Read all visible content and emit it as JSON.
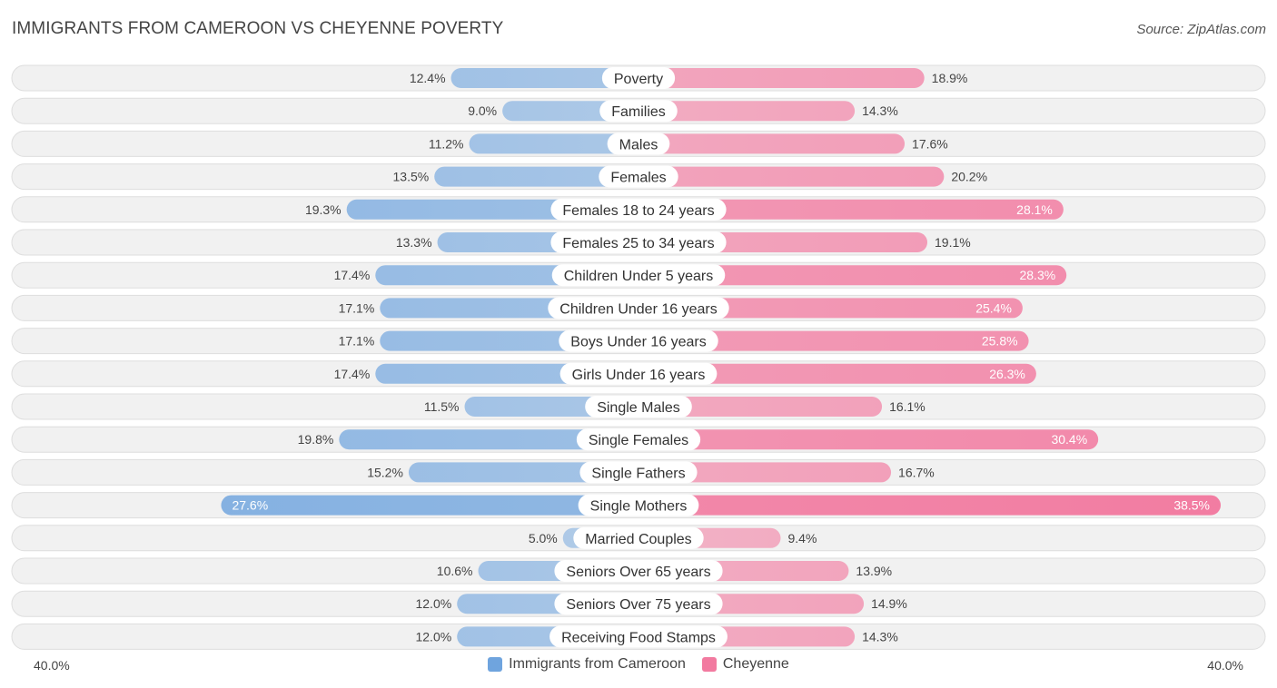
{
  "chart_data": {
    "type": "bar",
    "orientation": "horizontal-diverging",
    "title": "IMMIGRANTS FROM CAMEROON VS CHEYENNE POVERTY",
    "source": "Source: ZipAtlas.com",
    "axis_min_label": "40.0%",
    "axis_max_label": "40.0%",
    "axis_max": 40.0,
    "unit": "%",
    "categories": [
      "Poverty",
      "Families",
      "Males",
      "Females",
      "Females 18 to 24 years",
      "Females 25 to 34 years",
      "Children Under 5 years",
      "Children Under 16 years",
      "Boys Under 16 years",
      "Girls Under 16 years",
      "Single Males",
      "Single Females",
      "Single Fathers",
      "Single Mothers",
      "Married Couples",
      "Seniors Over 65 years",
      "Seniors Over 75 years",
      "Receiving Food Stamps"
    ],
    "series": [
      {
        "name": "Immigrants from Cameroon",
        "color": "#6fa4de",
        "values": [
          12.4,
          9.0,
          11.2,
          13.5,
          19.3,
          13.3,
          17.4,
          17.1,
          17.1,
          17.4,
          11.5,
          19.8,
          15.2,
          27.6,
          5.0,
          10.6,
          12.0,
          12.0
        ]
      },
      {
        "name": "Cheyenne",
        "color": "#f27aa0",
        "values": [
          18.9,
          14.3,
          17.6,
          20.2,
          28.1,
          19.1,
          28.3,
          25.4,
          25.8,
          26.3,
          16.1,
          30.4,
          16.7,
          38.5,
          9.4,
          13.9,
          14.9,
          14.3
        ]
      }
    ],
    "legend": [
      "Immigrants from Cameroon",
      "Cheyenne"
    ],
    "legend_position": "bottom-center"
  }
}
